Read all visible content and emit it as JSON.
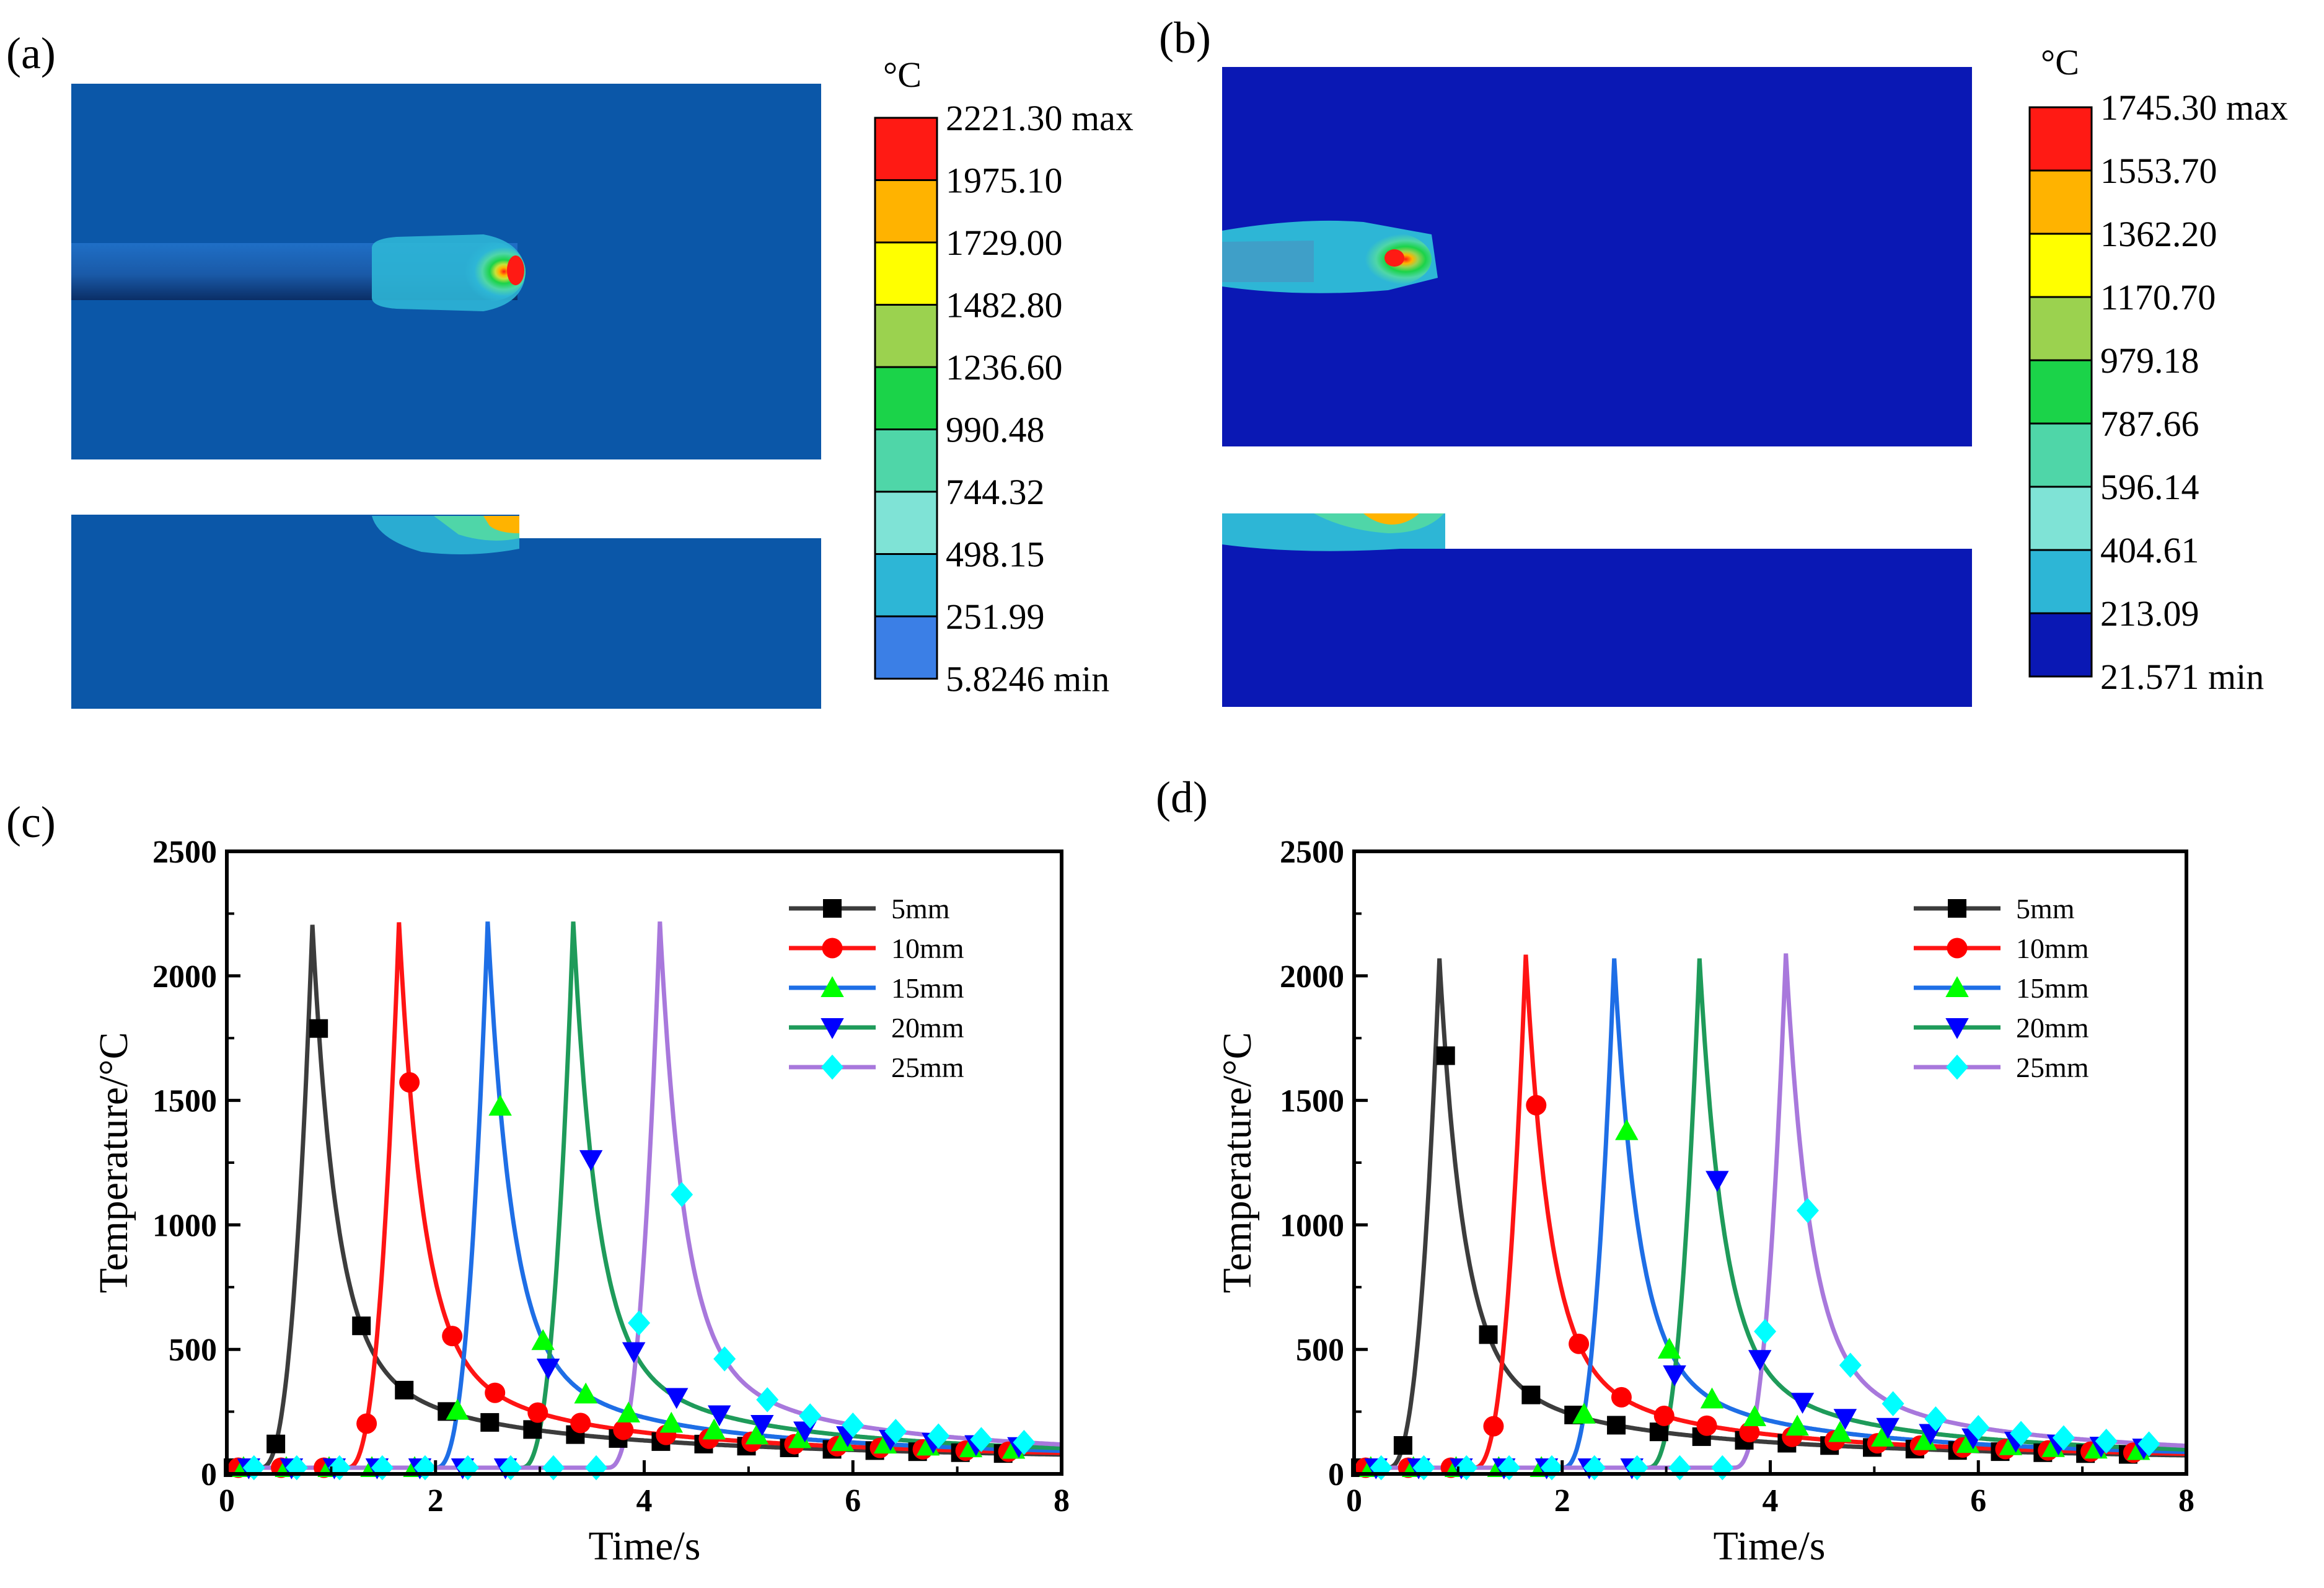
{
  "panels": {
    "a": {
      "label": "(a)"
    },
    "b": {
      "label": "(b)"
    },
    "c": {
      "label": "(c)"
    },
    "d": {
      "label": "(d)"
    }
  },
  "contour_a": {
    "unit": "°C",
    "levels": [
      "2221.30 max",
      "1975.10",
      "1729.00",
      "1482.80",
      "1236.60",
      "990.48",
      "744.32",
      "498.15",
      "251.99",
      "5.8246 min"
    ],
    "band_colors": [
      "#ff1a14",
      "#ffb300",
      "#ffff00",
      "#9bd24f",
      "#1bd349",
      "#4fd6a8",
      "#7fe3d6",
      "#2db6d6",
      "#3b7fe6"
    ],
    "background_color": "#0b57a8"
  },
  "contour_b": {
    "unit": "°C",
    "levels": [
      "1745.30 max",
      "1553.70",
      "1362.20",
      "1170.70",
      "979.18",
      "787.66",
      "596.14",
      "404.61",
      "213.09",
      "21.571 min"
    ],
    "band_colors": [
      "#ff1a14",
      "#ffb300",
      "#ffff00",
      "#9bd24f",
      "#1bd349",
      "#4fd6a8",
      "#7fe3d6",
      "#2db6d6",
      "#0a18b4"
    ],
    "background_color": "#0a18b4"
  },
  "chart_data": [
    {
      "panel": "(c)",
      "type": "line",
      "xlabel": "Time/s",
      "ylabel": "Temperature/°C",
      "xlim": [
        0,
        8
      ],
      "ylim": [
        0,
        2500
      ],
      "xticks": [
        0,
        2,
        4,
        6,
        8
      ],
      "yticks": [
        0,
        500,
        1000,
        1500,
        2000,
        2500
      ],
      "legend_position": "top-right",
      "series": [
        {
          "name": "5mm",
          "color": "#3c3c3c",
          "marker": "square",
          "peak_time": 0.82,
          "peak": 2205,
          "baseline": 25
        },
        {
          "name": "10mm",
          "color": "#ff1414",
          "marker": "circle",
          "peak_time": 1.65,
          "peak": 2215,
          "baseline": 25
        },
        {
          "name": "15mm",
          "color": "#1e6ee6",
          "marker": "triangle-up",
          "peak_time": 2.5,
          "peak": 2218,
          "baseline": 25
        },
        {
          "name": "20mm",
          "color": "#1e9b5a",
          "marker": "triangle-down",
          "peak_time": 3.32,
          "peak": 2218,
          "baseline": 25
        },
        {
          "name": "25mm",
          "color": "#a878dc",
          "marker": "diamond",
          "peak_time": 4.15,
          "peak": 2218,
          "baseline": 25
        }
      ],
      "marker_colors": [
        "#000000",
        "#ff0000",
        "#00ff00",
        "#0000ff",
        "#00ffff"
      ]
    },
    {
      "panel": "(d)",
      "type": "line",
      "xlabel": "Time/s",
      "ylabel": "Temperature/°C",
      "xlim": [
        0,
        8
      ],
      "ylim": [
        0,
        2500
      ],
      "xticks": [
        0,
        2,
        4,
        6,
        8
      ],
      "yticks": [
        0,
        500,
        1000,
        1500,
        2000,
        2500
      ],
      "legend_position": "top-right",
      "series": [
        {
          "name": "5mm",
          "color": "#3c3c3c",
          "marker": "square",
          "peak_time": 0.82,
          "peak": 2070,
          "baseline": 25
        },
        {
          "name": "10mm",
          "color": "#ff1414",
          "marker": "circle",
          "peak_time": 1.65,
          "peak": 2085,
          "baseline": 25
        },
        {
          "name": "15mm",
          "color": "#1e6ee6",
          "marker": "triangle-up",
          "peak_time": 2.5,
          "peak": 2070,
          "baseline": 25
        },
        {
          "name": "20mm",
          "color": "#1e9b5a",
          "marker": "triangle-down",
          "peak_time": 3.32,
          "peak": 2070,
          "baseline": 25
        },
        {
          "name": "25mm",
          "color": "#a878dc",
          "marker": "diamond",
          "peak_time": 4.15,
          "peak": 2090,
          "baseline": 25
        }
      ],
      "marker_colors": [
        "#000000",
        "#ff0000",
        "#00ff00",
        "#0000ff",
        "#00ffff"
      ]
    }
  ]
}
